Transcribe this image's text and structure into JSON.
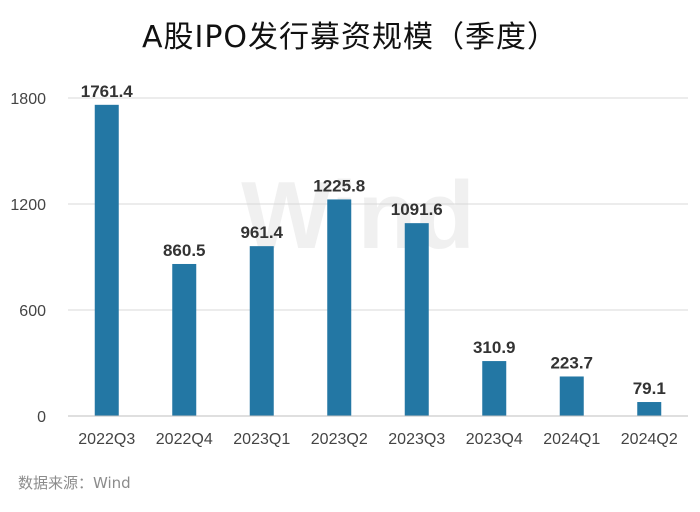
{
  "title": "A股IPO发行募资规模（季度）",
  "source": "数据来源：Wind",
  "watermark": "Wind",
  "chart_data": {
    "type": "bar",
    "title": "A股IPO发行募资规模（季度）",
    "categories": [
      "2022Q3",
      "2022Q4",
      "2023Q1",
      "2023Q2",
      "2023Q3",
      "2023Q4",
      "2024Q1",
      "2024Q2"
    ],
    "values": [
      1761.4,
      860.5,
      961.4,
      1225.8,
      1091.6,
      310.9,
      223.7,
      79.1
    ],
    "data_labels": [
      "1761.4",
      "860.5",
      "961.4",
      "1225.8",
      "1091.6",
      "310.9",
      "223.7",
      "79.1"
    ],
    "yticks": [
      0,
      600,
      1200,
      1800
    ],
    "ylim": [
      0,
      1800
    ],
    "grid": true,
    "legend": "none",
    "bar_color": "#2377a4",
    "grid_color": "#d9d9d9"
  }
}
